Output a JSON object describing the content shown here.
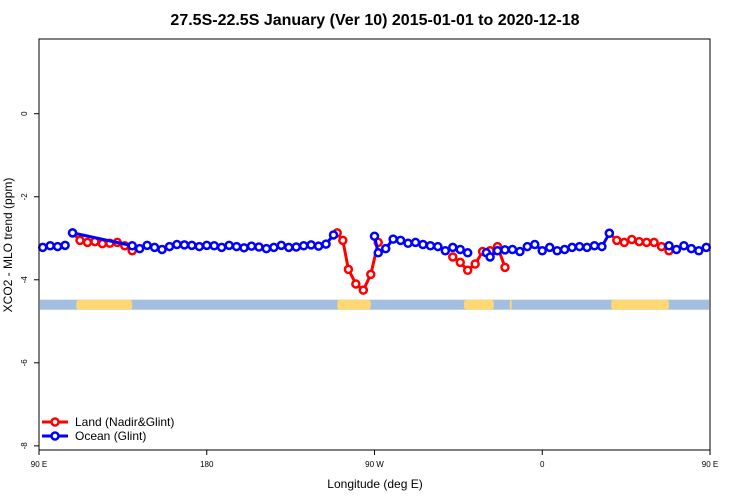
{
  "colors": {
    "land": "#ff0000",
    "ocean": "#0000ff",
    "band_land": "#ffd874",
    "band_ocean": "#a3bedf",
    "axis": "#000000",
    "background": "#ffffff"
  },
  "chart_data": {
    "type": "line",
    "title": "27.5S-22.5S January (Ver 10)   2015-01-01 to 2020-12-18",
    "xlabel": "Longitude (deg E)",
    "ylabel": "XCO2 - MLO trend (ppm)",
    "xlim": [
      0,
      360
    ],
    "ylim": [
      -8.1,
      1.8
    ],
    "grid": false,
    "legend_position": "bottom-left",
    "x_ticks": [
      {
        "value": 0,
        "label": "90 E"
      },
      {
        "value": 90,
        "label": "180"
      },
      {
        "value": 180,
        "label": "90 W"
      },
      {
        "value": 270,
        "label": "0"
      },
      {
        "value": 360,
        "label": "90 E"
      }
    ],
    "y_ticks": [
      {
        "value": 0,
        "label": "0"
      },
      {
        "value": -2,
        "label": "-2"
      },
      {
        "value": -4,
        "label": "-4"
      },
      {
        "value": -6,
        "label": "-6"
      },
      {
        "value": -8,
        "label": "-8"
      }
    ],
    "surface_band": {
      "y_center": -4.6,
      "land_segments": [
        [
          20,
          50
        ],
        [
          160,
          178
        ],
        [
          228,
          244
        ],
        [
          252.6,
          253.6
        ],
        [
          307,
          338
        ]
      ]
    },
    "series": [
      {
        "name": "Land (Nadir&Glint)",
        "color_key": "land",
        "segments": [
          [
            [
              18,
              -2.87
            ],
            [
              22,
              -3.05
            ],
            [
              26,
              -3.1
            ],
            [
              30,
              -3.08
            ],
            [
              34,
              -3.13
            ],
            [
              38,
              -3.12
            ],
            [
              42,
              -3.1
            ],
            [
              46,
              -3.18
            ],
            [
              50,
              -3.3
            ]
          ],
          [
            [
              160,
              -2.87
            ],
            [
              163,
              -3.05
            ],
            [
              166,
              -3.75
            ],
            [
              170,
              -4.1
            ],
            [
              174,
              -4.25
            ],
            [
              178,
              -3.87
            ],
            [
              182,
              -3.1
            ]
          ],
          [
            [
              222,
              -3.45
            ],
            [
              226,
              -3.58
            ],
            [
              230,
              -3.77
            ],
            [
              234,
              -3.62
            ],
            [
              238,
              -3.32
            ],
            [
              242,
              -3.3
            ],
            [
              246,
              -3.2
            ],
            [
              250,
              -3.7
            ]
          ],
          [
            [
              306,
              -2.88
            ],
            [
              310,
              -3.05
            ],
            [
              314,
              -3.1
            ],
            [
              318,
              -3.03
            ],
            [
              322,
              -3.08
            ],
            [
              326,
              -3.1
            ],
            [
              330,
              -3.1
            ],
            [
              334,
              -3.2
            ],
            [
              338,
              -3.3
            ]
          ]
        ]
      },
      {
        "name": "Ocean (Glint)",
        "color_key": "ocean",
        "segments": [
          [
            [
              2,
              -3.22
            ],
            [
              6,
              -3.18
            ],
            [
              10,
              -3.2
            ],
            [
              14,
              -3.17
            ]
          ],
          [
            [
              18,
              -2.87
            ],
            [
              50,
              -3.18
            ],
            [
              54,
              -3.25
            ],
            [
              58,
              -3.17
            ],
            [
              62,
              -3.22
            ],
            [
              66,
              -3.27
            ],
            [
              70,
              -3.2
            ],
            [
              74,
              -3.15
            ],
            [
              78,
              -3.16
            ],
            [
              82,
              -3.17
            ],
            [
              86,
              -3.2
            ],
            [
              90,
              -3.17
            ],
            [
              94,
              -3.18
            ],
            [
              98,
              -3.22
            ],
            [
              102,
              -3.17
            ],
            [
              106,
              -3.2
            ],
            [
              110,
              -3.23
            ],
            [
              114,
              -3.19
            ],
            [
              118,
              -3.21
            ],
            [
              122,
              -3.25
            ],
            [
              126,
              -3.22
            ],
            [
              130,
              -3.17
            ],
            [
              134,
              -3.22
            ],
            [
              138,
              -3.21
            ],
            [
              142,
              -3.18
            ],
            [
              146,
              -3.16
            ],
            [
              150,
              -3.19
            ],
            [
              154,
              -3.14
            ],
            [
              158,
              -2.92
            ]
          ],
          [
            [
              180,
              -2.95
            ],
            [
              182,
              -3.35
            ],
            [
              186,
              -3.25
            ],
            [
              190,
              -3.02
            ],
            [
              194,
              -3.05
            ],
            [
              198,
              -3.12
            ],
            [
              202,
              -3.1
            ],
            [
              206,
              -3.15
            ],
            [
              210,
              -3.18
            ],
            [
              214,
              -3.2
            ],
            [
              218,
              -3.3
            ],
            [
              222,
              -3.22
            ],
            [
              226,
              -3.27
            ],
            [
              230,
              -3.35
            ]
          ],
          [
            [
              240,
              -3.35
            ],
            [
              242,
              -3.45
            ],
            [
              246,
              -3.3
            ],
            [
              250,
              -3.28
            ],
            [
              254,
              -3.27
            ],
            [
              258,
              -3.32
            ],
            [
              262,
              -3.2
            ],
            [
              266,
              -3.15
            ],
            [
              270,
              -3.3
            ],
            [
              274,
              -3.22
            ],
            [
              278,
              -3.3
            ],
            [
              282,
              -3.27
            ],
            [
              286,
              -3.22
            ],
            [
              290,
              -3.2
            ],
            [
              294,
              -3.22
            ],
            [
              298,
              -3.18
            ],
            [
              302,
              -3.2
            ],
            [
              306,
              -2.88
            ]
          ],
          [
            [
              338,
              -3.18
            ],
            [
              342,
              -3.27
            ],
            [
              346,
              -3.18
            ],
            [
              350,
              -3.25
            ],
            [
              354,
              -3.3
            ],
            [
              358,
              -3.22
            ]
          ]
        ]
      }
    ]
  }
}
